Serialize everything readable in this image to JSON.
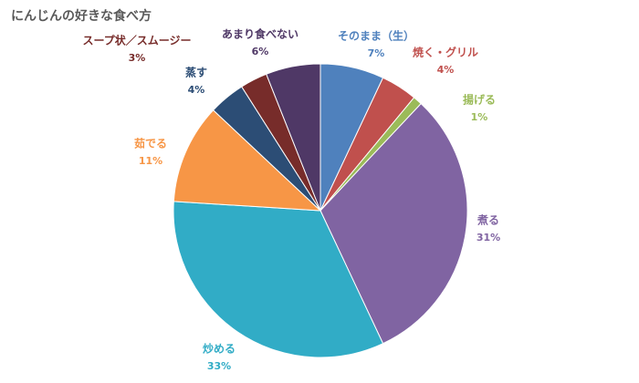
{
  "chart_data": {
    "type": "pie",
    "title": "にんじんの好きな食べ方",
    "categories": [
      "そのまま（生）",
      "焼く・グリル",
      "揚げる",
      "煮る",
      "炒める",
      "茹でる",
      "蒸す",
      "スープ状／スムージー",
      "あまり食べない"
    ],
    "values": [
      7,
      4,
      1,
      31,
      33,
      11,
      4,
      3,
      6
    ],
    "value_labels": [
      "7%",
      "4%",
      "1%",
      "31%",
      "33%",
      "11%",
      "4%",
      "3%",
      "6%"
    ],
    "colors": [
      "#4f81bd",
      "#c0504d",
      "#9bbb59",
      "#8064a2",
      "#31acc6",
      "#f79646",
      "#2c4d75",
      "#772c2a",
      "#4f3866"
    ]
  }
}
